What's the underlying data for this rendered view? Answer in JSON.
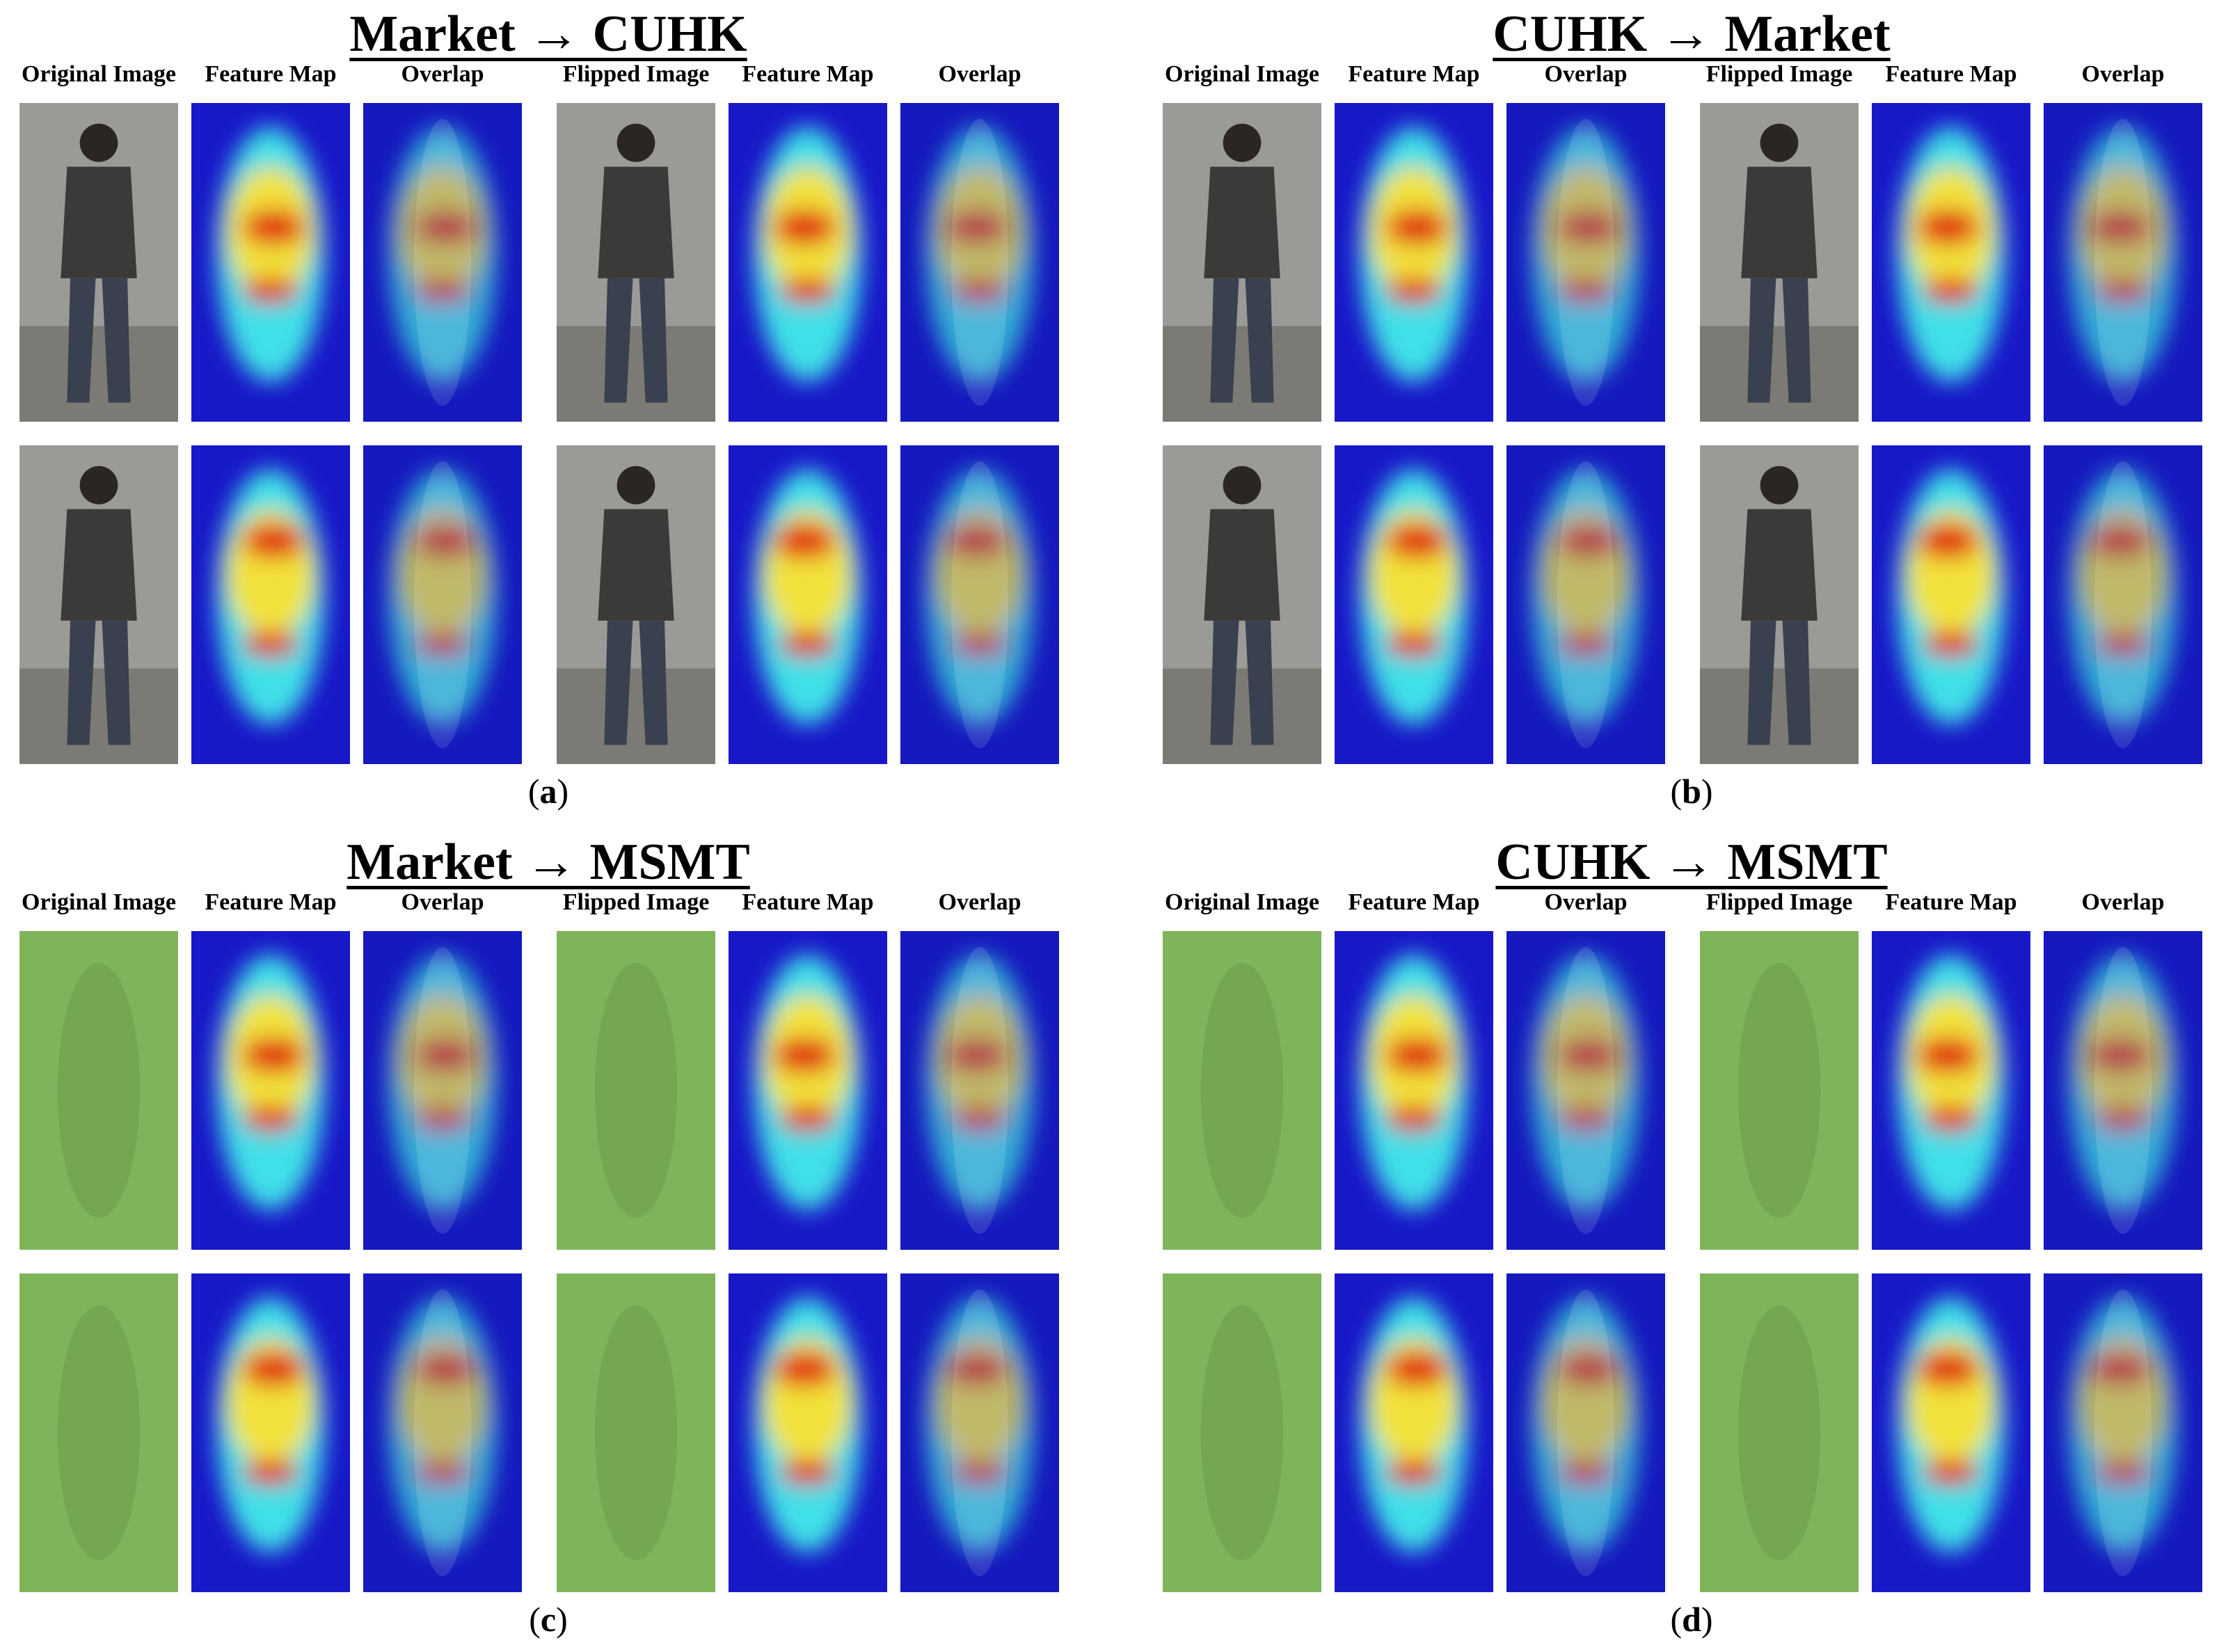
{
  "figure": {
    "panels": [
      {
        "id": "a",
        "title": "Market → CUHK",
        "caption_letter": "a",
        "columns": [
          "Original Image",
          "Feature Map",
          "Overlap",
          "Flipped Image",
          "Feature Map",
          "Overlap"
        ],
        "source_style": "photo-grey"
      },
      {
        "id": "b",
        "title": "CUHK → Market",
        "caption_letter": "b",
        "columns": [
          "Original Image",
          "Feature Map",
          "Overlap",
          "Flipped Image",
          "Feature Map",
          "Overlap"
        ],
        "source_style": "photo-grey"
      },
      {
        "id": "c",
        "title": "Market → MSMT",
        "caption_letter": "c",
        "columns": [
          "Original Image",
          "Feature Map",
          "Overlap",
          "Flipped Image",
          "Feature Map",
          "Overlap"
        ],
        "source_style": "photo-masked-green"
      },
      {
        "id": "d",
        "title": "CUHK → MSMT",
        "caption_letter": "d",
        "columns": [
          "Original Image",
          "Feature Map",
          "Overlap",
          "Flipped Image",
          "Feature Map",
          "Overlap"
        ],
        "source_style": "photo-masked-green"
      }
    ],
    "colors": {
      "heat_low": "#1818c8",
      "heat_mid": "#3fe0e8",
      "heat_warm": "#f2e23a",
      "heat_hot": "#e01010",
      "mask_green": "#7fb55a"
    }
  }
}
